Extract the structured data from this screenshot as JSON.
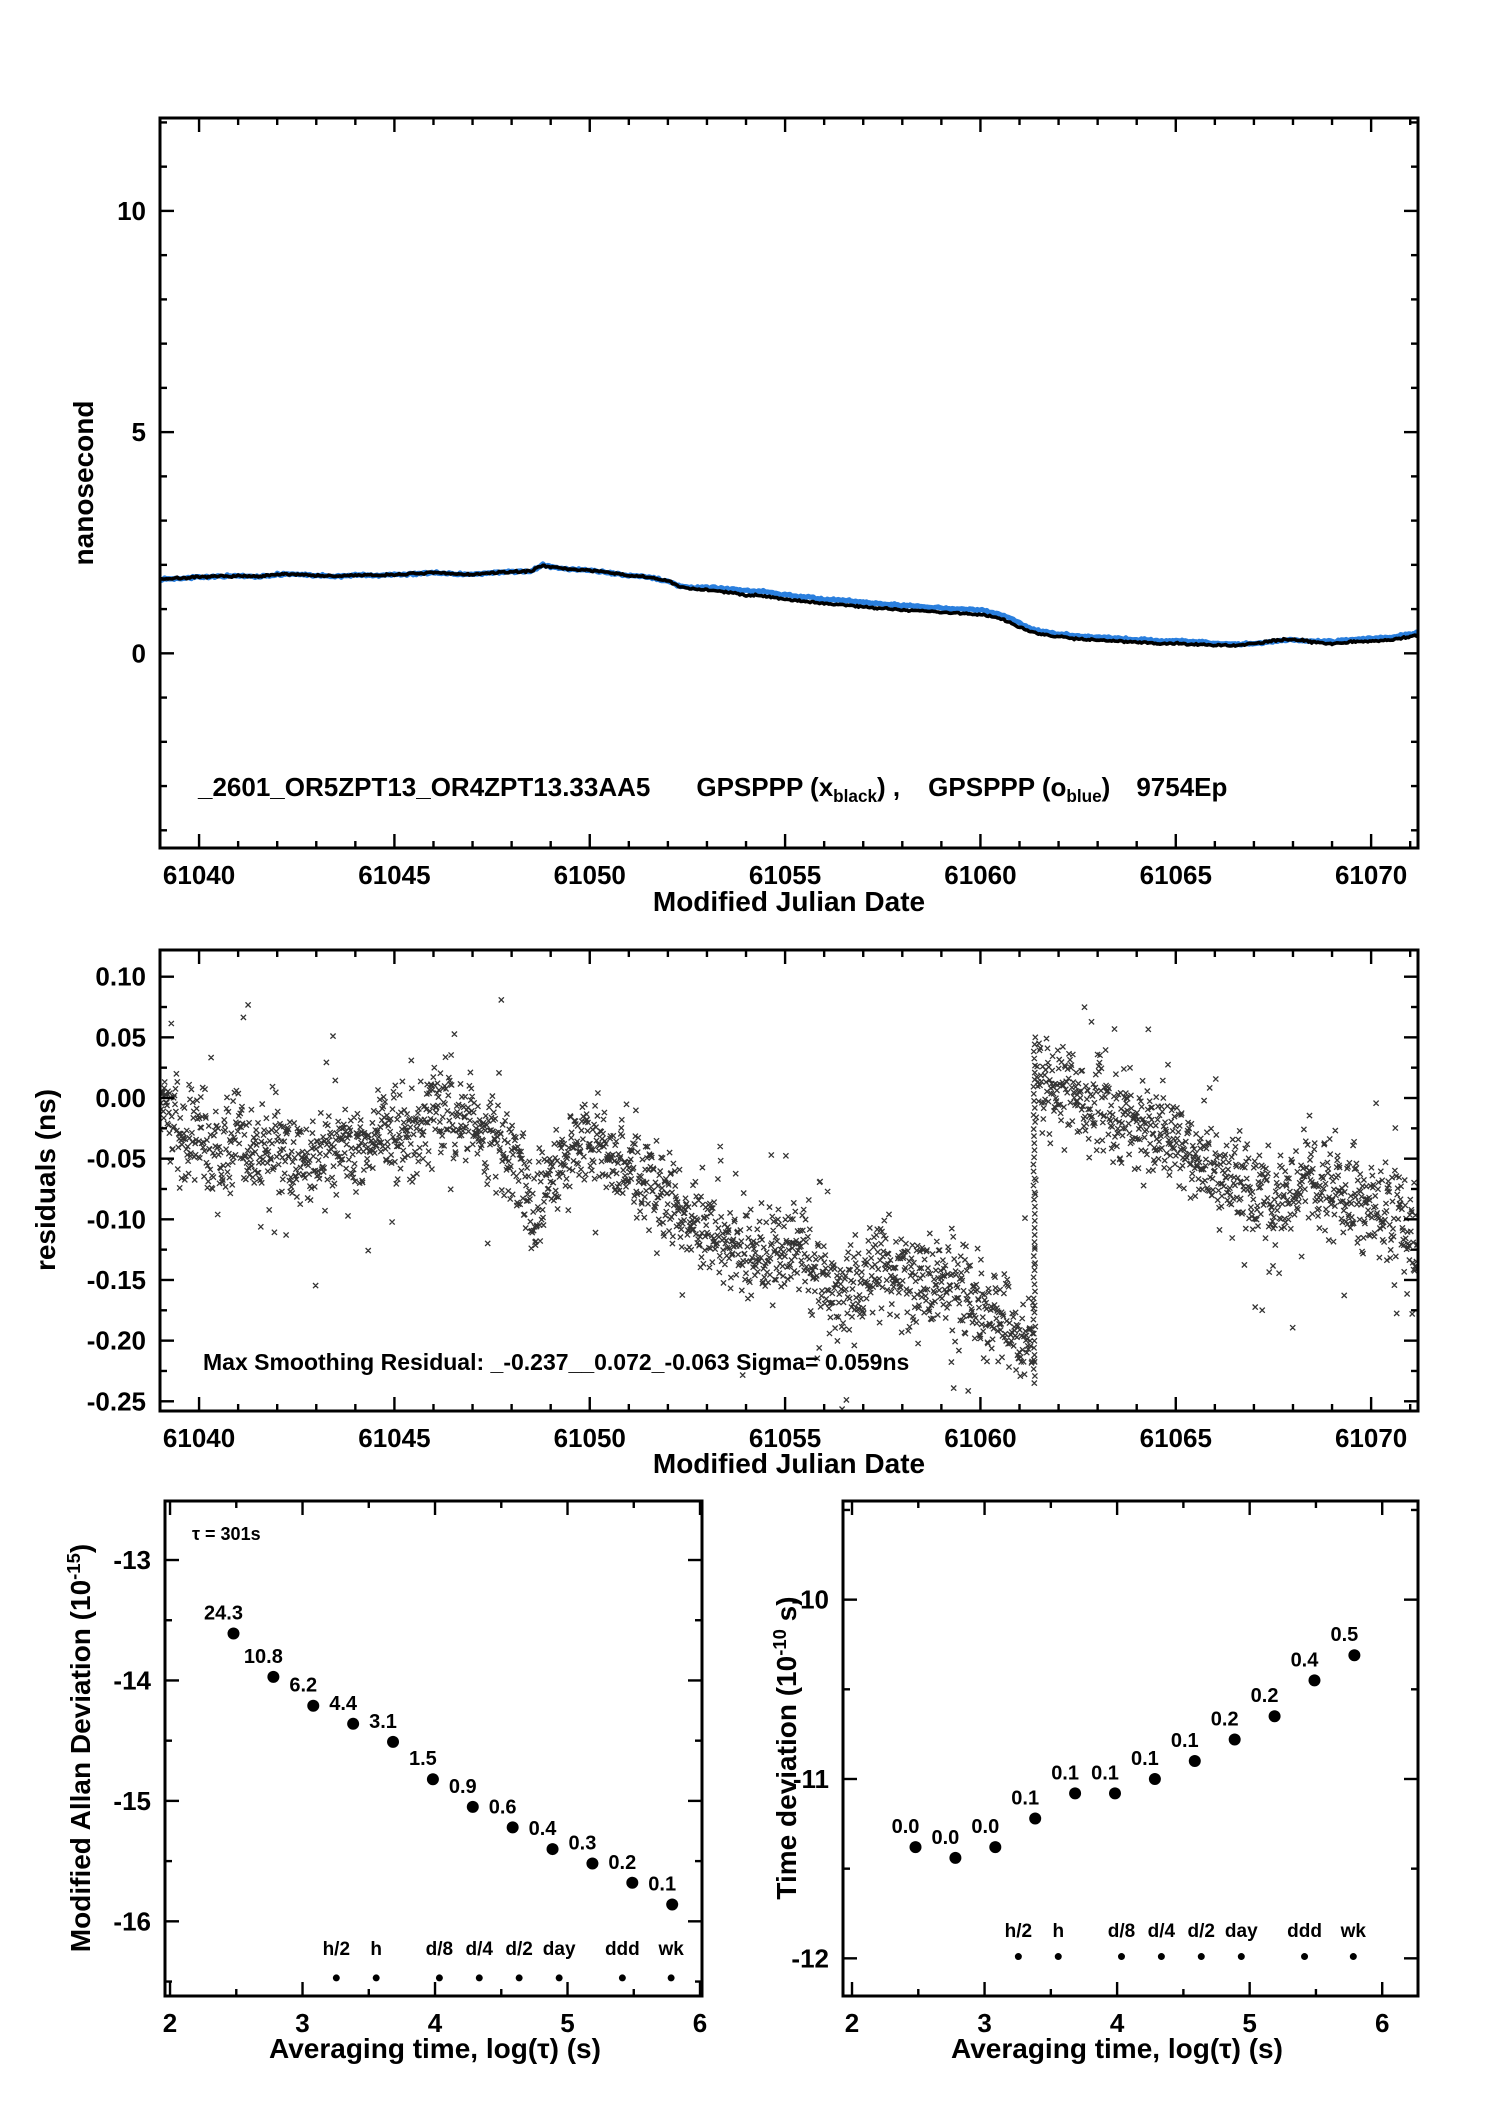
{
  "page": {
    "background": "#ffffff"
  },
  "colors": {
    "trace_black": "#000000",
    "trace_blue": "#2a7fde",
    "label_red": "#ee0000"
  },
  "chart_data": [
    {
      "id": "top",
      "type": "line",
      "ylabel": "nanosecond",
      "xlabel": "Modified Julian Date",
      "xlim": [
        61039,
        61071.2
      ],
      "ylim": [
        -4.4,
        12.1
      ],
      "xticks": {
        "values": [
          61040,
          61045,
          61050,
          61055,
          61060,
          61065,
          61070
        ],
        "labels": [
          "61040",
          "61045",
          "61050",
          "61055",
          "61060",
          "61065",
          "61070"
        ],
        "minor_step": 1
      },
      "yticks": {
        "values": [
          0,
          5,
          10
        ],
        "labels": [
          "0",
          "5",
          "10"
        ],
        "minor_step": 1
      },
      "annotation": {
        "id_label": "_2601_OR5ZPT13_OR4ZPT13.33AA5",
        "series1_prefix": "GPSPPP (x",
        "series1_sub": "black",
        "series1_suffix": ") ,",
        "series2_prefix": "GPSPPP (o",
        "series2_sub": "blue",
        "series2_suffix": ")",
        "code": "9754Ep"
      },
      "noise_amp": 0.028,
      "series": [
        {
          "name": "GPSPPP (x black)",
          "marker": "x",
          "color": "#000000",
          "anchors": [
            [
              61039,
              1.68
            ],
            [
              61039.5,
              1.7
            ],
            [
              61040,
              1.72
            ],
            [
              61040.5,
              1.74
            ],
            [
              61041,
              1.75
            ],
            [
              61041.5,
              1.73
            ],
            [
              61042,
              1.78
            ],
            [
              61042.5,
              1.79
            ],
            [
              61043,
              1.76
            ],
            [
              61043.5,
              1.74
            ],
            [
              61044,
              1.77
            ],
            [
              61044.5,
              1.76
            ],
            [
              61045,
              1.78
            ],
            [
              61045.5,
              1.8
            ],
            [
              61046,
              1.82
            ],
            [
              61046.5,
              1.8
            ],
            [
              61047,
              1.78
            ],
            [
              61047.5,
              1.82
            ],
            [
              61048,
              1.84
            ],
            [
              61048.5,
              1.86
            ],
            [
              61048.8,
              2.0
            ],
            [
              61049,
              1.95
            ],
            [
              61049.5,
              1.9
            ],
            [
              61050,
              1.88
            ],
            [
              61050.5,
              1.82
            ],
            [
              61051,
              1.76
            ],
            [
              61051.5,
              1.72
            ],
            [
              61052,
              1.64
            ],
            [
              61052.3,
              1.5
            ],
            [
              61052.6,
              1.46
            ],
            [
              61053,
              1.44
            ],
            [
              61053.5,
              1.38
            ],
            [
              61054,
              1.32
            ],
            [
              61054.5,
              1.3
            ],
            [
              61055,
              1.22
            ],
            [
              61055.5,
              1.18
            ],
            [
              61056,
              1.12
            ],
            [
              61056.5,
              1.1
            ],
            [
              61057,
              1.05
            ],
            [
              61057.5,
              1.02
            ],
            [
              61058,
              0.98
            ],
            [
              61058.5,
              0.96
            ],
            [
              61059,
              0.93
            ],
            [
              61059.5,
              0.9
            ],
            [
              61060,
              0.88
            ],
            [
              61060.5,
              0.8
            ],
            [
              61061,
              0.6
            ],
            [
              61061.3,
              0.48
            ],
            [
              61061.6,
              0.42
            ],
            [
              61062,
              0.38
            ],
            [
              61062.5,
              0.33
            ],
            [
              61063,
              0.3
            ],
            [
              61063.5,
              0.28
            ],
            [
              61064,
              0.26
            ],
            [
              61064.5,
              0.22
            ],
            [
              61065,
              0.22
            ],
            [
              61065.5,
              0.2
            ],
            [
              61066,
              0.18
            ],
            [
              61066.5,
              0.18
            ],
            [
              61067,
              0.22
            ],
            [
              61067.5,
              0.28
            ],
            [
              61068,
              0.32
            ],
            [
              61068.5,
              0.26
            ],
            [
              61069,
              0.22
            ],
            [
              61069.5,
              0.26
            ],
            [
              61070,
              0.28
            ],
            [
              61070.5,
              0.3
            ],
            [
              61071,
              0.38
            ],
            [
              61071.2,
              0.42
            ]
          ]
        },
        {
          "name": "GPSPPP (o blue)",
          "marker": "o",
          "color": "#2a7fde",
          "offset_from_black_anchors": [
            [
              61039,
              0
            ],
            [
              61052,
              0
            ],
            [
              61052.8,
              0.04
            ],
            [
              61053.5,
              0.08
            ],
            [
              61054,
              0.1
            ],
            [
              61060,
              0.1
            ],
            [
              61060.8,
              0.09
            ],
            [
              61061.5,
              0.07
            ],
            [
              61062,
              0.06
            ],
            [
              61065.5,
              0.06
            ],
            [
              61066.5,
              0.03
            ],
            [
              61067,
              0.0
            ],
            [
              61067.8,
              -0.02
            ],
            [
              61068.4,
              0.01
            ],
            [
              61069,
              0.05
            ],
            [
              61070,
              0.06
            ],
            [
              61071.2,
              0.06
            ]
          ]
        }
      ]
    },
    {
      "id": "residuals",
      "type": "scatter",
      "ylabel": "residuals (ns)",
      "xlabel": "Modified Julian Date",
      "xlim": [
        61039,
        61071.2
      ],
      "ylim": [
        -0.258,
        0.122
      ],
      "xticks": {
        "values": [
          61040,
          61045,
          61050,
          61055,
          61060,
          61065,
          61070
        ],
        "labels": [
          "61040",
          "61045",
          "61050",
          "61055",
          "61060",
          "61065",
          "61070"
        ],
        "minor_step": 1
      },
      "yticks": {
        "values": [
          0.1,
          0.05,
          0,
          -0.05,
          -0.1,
          -0.15,
          -0.2,
          -0.25
        ],
        "labels": [
          "0.10",
          "0.05",
          "0.00",
          "-0.05",
          "-0.10",
          "-0.15",
          "-0.20",
          "-0.25"
        ],
        "minor_step": 0.025
      },
      "annotation": {
        "text": "Max Smoothing Residual: _-0.237__0.072_-0.063  Sigma= 0.059ns"
      },
      "marker": "x",
      "scatter": {
        "step": 0.012,
        "spread": 0.017,
        "outlier_rate": 0.05,
        "outlier_amp": 0.09
      },
      "spike": {
        "x": 61061.38,
        "y_min": -0.235,
        "y_max": 0.05,
        "count": 50
      },
      "mean_anchors": [
        [
          61039,
          0.0
        ],
        [
          61039.3,
          -0.02
        ],
        [
          61039.6,
          -0.04
        ],
        [
          61040,
          -0.03
        ],
        [
          61040.5,
          -0.045
        ],
        [
          61041,
          -0.03
        ],
        [
          61041.5,
          -0.05
        ],
        [
          61042,
          -0.04
        ],
        [
          61042.5,
          -0.05
        ],
        [
          61043,
          -0.05
        ],
        [
          61043.5,
          -0.04
        ],
        [
          61044,
          -0.05
        ],
        [
          61044.4,
          -0.03
        ],
        [
          61045,
          -0.02
        ],
        [
          61045.5,
          -0.035
        ],
        [
          61046,
          -0.01
        ],
        [
          61046.5,
          -0.02
        ],
        [
          61047,
          -0.015
        ],
        [
          61047.3,
          -0.04
        ],
        [
          61047.7,
          -0.03
        ],
        [
          61048,
          -0.05
        ],
        [
          61048.3,
          -0.07
        ],
        [
          61048.6,
          -0.09
        ],
        [
          61049,
          -0.06
        ],
        [
          61049.4,
          -0.05
        ],
        [
          61049.7,
          -0.04
        ],
        [
          61050,
          -0.03
        ],
        [
          61050.4,
          -0.05
        ],
        [
          61050.7,
          -0.06
        ],
        [
          61051,
          -0.06
        ],
        [
          61051.5,
          -0.07
        ],
        [
          61052,
          -0.08
        ],
        [
          61052.5,
          -0.1
        ],
        [
          61053,
          -0.1
        ],
        [
          61053.5,
          -0.12
        ],
        [
          61054,
          -0.13
        ],
        [
          61054.5,
          -0.13
        ],
        [
          61055,
          -0.12
        ],
        [
          61055.4,
          -0.13
        ],
        [
          61055.7,
          -0.14
        ],
        [
          61056,
          -0.15
        ],
        [
          61056.5,
          -0.16
        ],
        [
          61057,
          -0.15
        ],
        [
          61057.5,
          -0.14
        ],
        [
          61058,
          -0.15
        ],
        [
          61058.5,
          -0.16
        ],
        [
          61059,
          -0.15
        ],
        [
          61059.5,
          -0.16
        ],
        [
          61060,
          -0.17
        ],
        [
          61060.5,
          -0.18
        ],
        [
          61061,
          -0.2
        ],
        [
          61061.3,
          -0.21
        ],
        [
          61061.38,
          -0.15
        ],
        [
          61061.44,
          0.02
        ],
        [
          61061.6,
          0.01
        ],
        [
          61062,
          0.0
        ],
        [
          61062.3,
          0.01
        ],
        [
          61062.6,
          -0.01
        ],
        [
          61063,
          0.0
        ],
        [
          61063.5,
          -0.02
        ],
        [
          61064,
          -0.02
        ],
        [
          61064.5,
          -0.03
        ],
        [
          61065,
          -0.03
        ],
        [
          61065.5,
          -0.05
        ],
        [
          61066,
          -0.06
        ],
        [
          61066.5,
          -0.07
        ],
        [
          61067,
          -0.08
        ],
        [
          61067.5,
          -0.09
        ],
        [
          61068,
          -0.08
        ],
        [
          61068.3,
          -0.06
        ],
        [
          61068.7,
          -0.07
        ],
        [
          61069,
          -0.07
        ],
        [
          61069.5,
          -0.08
        ],
        [
          61070,
          -0.09
        ],
        [
          61070.5,
          -0.1
        ],
        [
          61071,
          -0.11
        ],
        [
          61071.2,
          -0.12
        ]
      ]
    },
    {
      "id": "mdev",
      "type": "scatter",
      "ylabel_parts": {
        "main": "Modified Allan Deviation (10",
        "sup": "-15",
        "end": ")"
      },
      "xlabel": "Averaging time, log(τ) (s)",
      "xlim": [
        1.962,
        6.015
      ],
      "ylim": [
        -16.62,
        -12.51
      ],
      "xticks": {
        "values": [
          2,
          3,
          4,
          5,
          6
        ],
        "labels": [
          "2",
          "3",
          "4",
          "5",
          "6"
        ],
        "minor_step": 0.5
      },
      "yticks": {
        "values": [
          -13,
          -14,
          -15,
          -16
        ],
        "labels": [
          "-13",
          "-14",
          "-15",
          "-16"
        ],
        "minor_step": 0.5
      },
      "tau_annotation": "τ = 301s",
      "points": {
        "x": [
          2.479,
          2.78,
          3.081,
          3.382,
          3.683,
          3.984,
          4.285,
          4.586,
          4.887,
          5.188,
          5.489,
          5.79
        ],
        "y": [
          -13.61,
          -13.97,
          -14.21,
          -14.36,
          -14.51,
          -14.82,
          -15.05,
          -15.22,
          -15.4,
          -15.52,
          -15.68,
          -15.86
        ],
        "labels": [
          "24.3",
          "10.8",
          "6.2",
          "4.4",
          "3.1",
          "1.5",
          "0.9",
          "0.6",
          "0.4",
          "0.3",
          "0.2",
          "0.1"
        ]
      },
      "period_markers": {
        "labels": [
          "h/2",
          "h",
          "d/8",
          "d/4",
          "d/2",
          "day",
          "ddd",
          "wk"
        ],
        "x": [
          3.255,
          3.556,
          4.033,
          4.334,
          4.635,
          4.937,
          5.414,
          5.782
        ],
        "text_y": -16.28,
        "dot_y": -16.47
      }
    },
    {
      "id": "tdev",
      "type": "scatter",
      "ylabel_parts": {
        "main": "Time deviation (10",
        "sup": "-10",
        "end": " s)"
      },
      "xlabel": "Averaging time, log(τ) (s)",
      "xlim": [
        1.932,
        6.27
      ],
      "ylim": [
        -12.21,
        -9.45
      ],
      "xticks": {
        "values": [
          2,
          3,
          4,
          5,
          6
        ],
        "labels": [
          "2",
          "3",
          "4",
          "5",
          "6"
        ],
        "minor_step": 0.5
      },
      "yticks": {
        "values": [
          -10,
          -11,
          -12
        ],
        "labels": [
          "-10",
          "-11",
          "-12"
        ],
        "minor_step": 0.5
      },
      "points": {
        "x": [
          2.479,
          2.78,
          3.081,
          3.382,
          3.683,
          3.984,
          4.285,
          4.586,
          4.887,
          5.188,
          5.489,
          5.79
        ],
        "y": [
          -11.38,
          -11.44,
          -11.38,
          -11.22,
          -11.08,
          -11.08,
          -11.0,
          -10.9,
          -10.78,
          -10.65,
          -10.45,
          -10.31
        ],
        "labels": [
          "0.0",
          "0.0",
          "0.0",
          "0.1",
          "0.1",
          "0.1",
          "0.1",
          "0.1",
          "0.2",
          "0.2",
          "0.4",
          "0.5"
        ]
      },
      "period_markers": {
        "labels": [
          "h/2",
          "h",
          "d/8",
          "d/4",
          "d/2",
          "day",
          "ddd",
          "wk"
        ],
        "x": [
          3.255,
          3.556,
          4.033,
          4.334,
          4.635,
          4.937,
          5.414,
          5.782
        ],
        "text_y": -11.88,
        "dot_y": -11.99
      }
    }
  ]
}
